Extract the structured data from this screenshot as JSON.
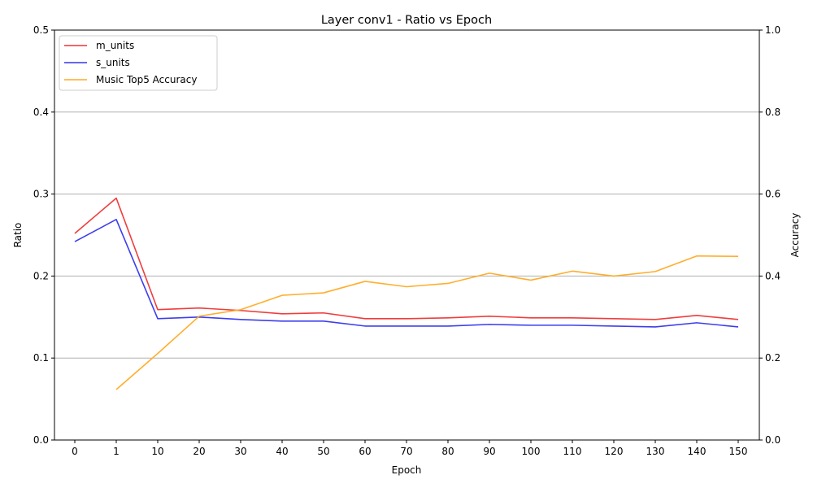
{
  "chart_data": {
    "type": "line",
    "title": "Layer conv1 - Ratio vs Epoch",
    "xlabel": "Epoch",
    "ylabel": "Ratio",
    "y2label": "Accuracy",
    "categories": [
      "0",
      "1",
      "10",
      "20",
      "30",
      "40",
      "50",
      "60",
      "70",
      "80",
      "90",
      "100",
      "110",
      "120",
      "130",
      "140",
      "150"
    ],
    "ylim": [
      0,
      0.5
    ],
    "y2lim": [
      0,
      1.0
    ],
    "yticks": [
      "0.0",
      "0.1",
      "0.2",
      "0.3",
      "0.4",
      "0.5"
    ],
    "y2ticks": [
      "0.0",
      "0.2",
      "0.4",
      "0.6",
      "0.8",
      "1.0"
    ],
    "grid": "horizontal",
    "legend_position": "top-left",
    "series": [
      {
        "name": "m_units",
        "axis": "left",
        "color": "#ee3333",
        "values": [
          0.252,
          0.295,
          0.159,
          0.161,
          0.158,
          0.154,
          0.155,
          0.148,
          0.148,
          0.149,
          0.151,
          0.149,
          0.149,
          0.148,
          0.147,
          0.152,
          0.147
        ]
      },
      {
        "name": "s_units",
        "axis": "left",
        "color": "#3333ee",
        "values": [
          0.242,
          0.269,
          0.148,
          0.15,
          0.147,
          0.145,
          0.145,
          0.139,
          0.139,
          0.139,
          0.141,
          0.14,
          0.14,
          0.139,
          0.138,
          0.143,
          0.138
        ]
      },
      {
        "name": "Music Top5 Accuracy",
        "axis": "right",
        "color": "#ffaa22",
        "values": [
          null,
          0.123,
          0.211,
          0.302,
          0.318,
          0.353,
          0.359,
          0.387,
          0.374,
          0.382,
          0.407,
          0.39,
          0.412,
          0.4,
          0.411,
          0.449,
          0.448
        ]
      }
    ]
  }
}
